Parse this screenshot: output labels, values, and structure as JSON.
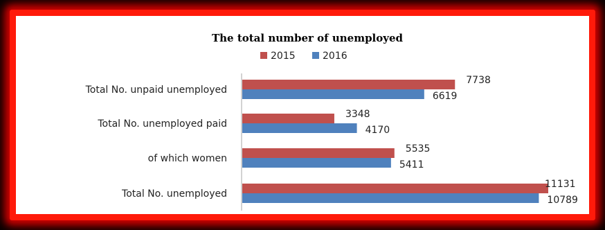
{
  "colors": {
    "background": "#000000",
    "glow_frame": "#ff1a0a",
    "panel": "#ffffff",
    "axis": "#a6a6a6"
  },
  "chart_data": {
    "type": "bar",
    "orientation": "horizontal",
    "title": "The total number of unemployed",
    "legend_position": "top",
    "categories": [
      "Total No. unpaid unemployed",
      "Total  No. unemployed paid",
      "of which women",
      "Total No. unemployed"
    ],
    "series": [
      {
        "name": "2015",
        "color": "#c0504d",
        "values": [
          7738,
          3348,
          5535,
          11131
        ]
      },
      {
        "name": "2016",
        "color": "#4f81bd",
        "values": [
          6619,
          4170,
          5411,
          10789
        ]
      }
    ],
    "xlim": [
      0,
      11131
    ],
    "grid": false,
    "data_labels": true
  }
}
